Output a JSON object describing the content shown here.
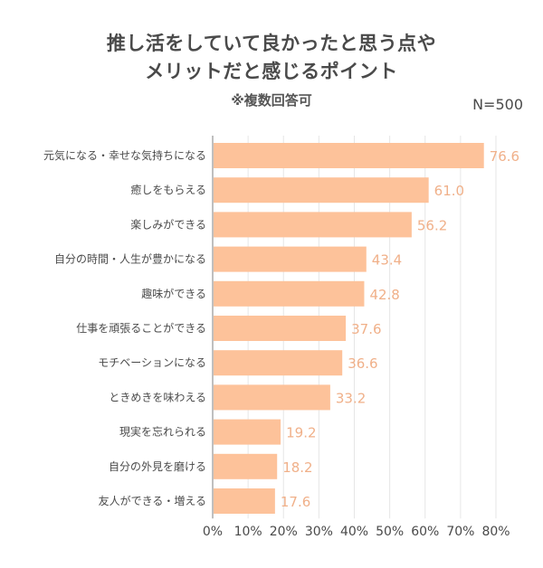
{
  "header": {
    "title_line1": "推し活をしていて良かったと思う点や",
    "title_line2": "メリットだと感じるポイント",
    "subtitle": "※複数回答可",
    "sample_size": "N=500"
  },
  "colors": {
    "bar": "#fdc29a",
    "value_label": "#f0b089",
    "gridline": "#e6e6e6",
    "axis": "#aaaaaa"
  },
  "chart_data": {
    "type": "bar",
    "orientation": "horizontal",
    "title": "推し活をしていて良かったと思う点やメリットだと感じるポイント",
    "subtitle": "※複数回答可",
    "annotation": "N=500",
    "xlabel": "",
    "ylabel": "",
    "xlim": [
      0,
      80
    ],
    "x_ticks": [
      "0%",
      "10%",
      "20%",
      "30%",
      "40%",
      "50%",
      "60%",
      "70%",
      "80%"
    ],
    "x_tick_values": [
      0,
      10,
      20,
      30,
      40,
      50,
      60,
      70,
      80
    ],
    "grid": true,
    "legend": "none",
    "categories": [
      "元気になる・幸せな気持ちになる",
      "癒しをもらえる",
      "楽しみができる",
      "自分の時間・人生が豊かになる",
      "趣味ができる",
      "仕事を頑張ることができる",
      "モチベーションになる",
      "ときめきを味わえる",
      "現実を忘れられる",
      "自分の外見を磨ける",
      "友人ができる・増える"
    ],
    "values": [
      76.6,
      61.0,
      56.2,
      43.4,
      42.8,
      37.6,
      36.6,
      33.2,
      19.2,
      18.2,
      17.6
    ],
    "value_labels": [
      "76.6",
      "61.0",
      "56.2",
      "43.4",
      "42.8",
      "37.6",
      "36.6",
      "33.2",
      "19.2",
      "18.2",
      "17.6"
    ]
  }
}
